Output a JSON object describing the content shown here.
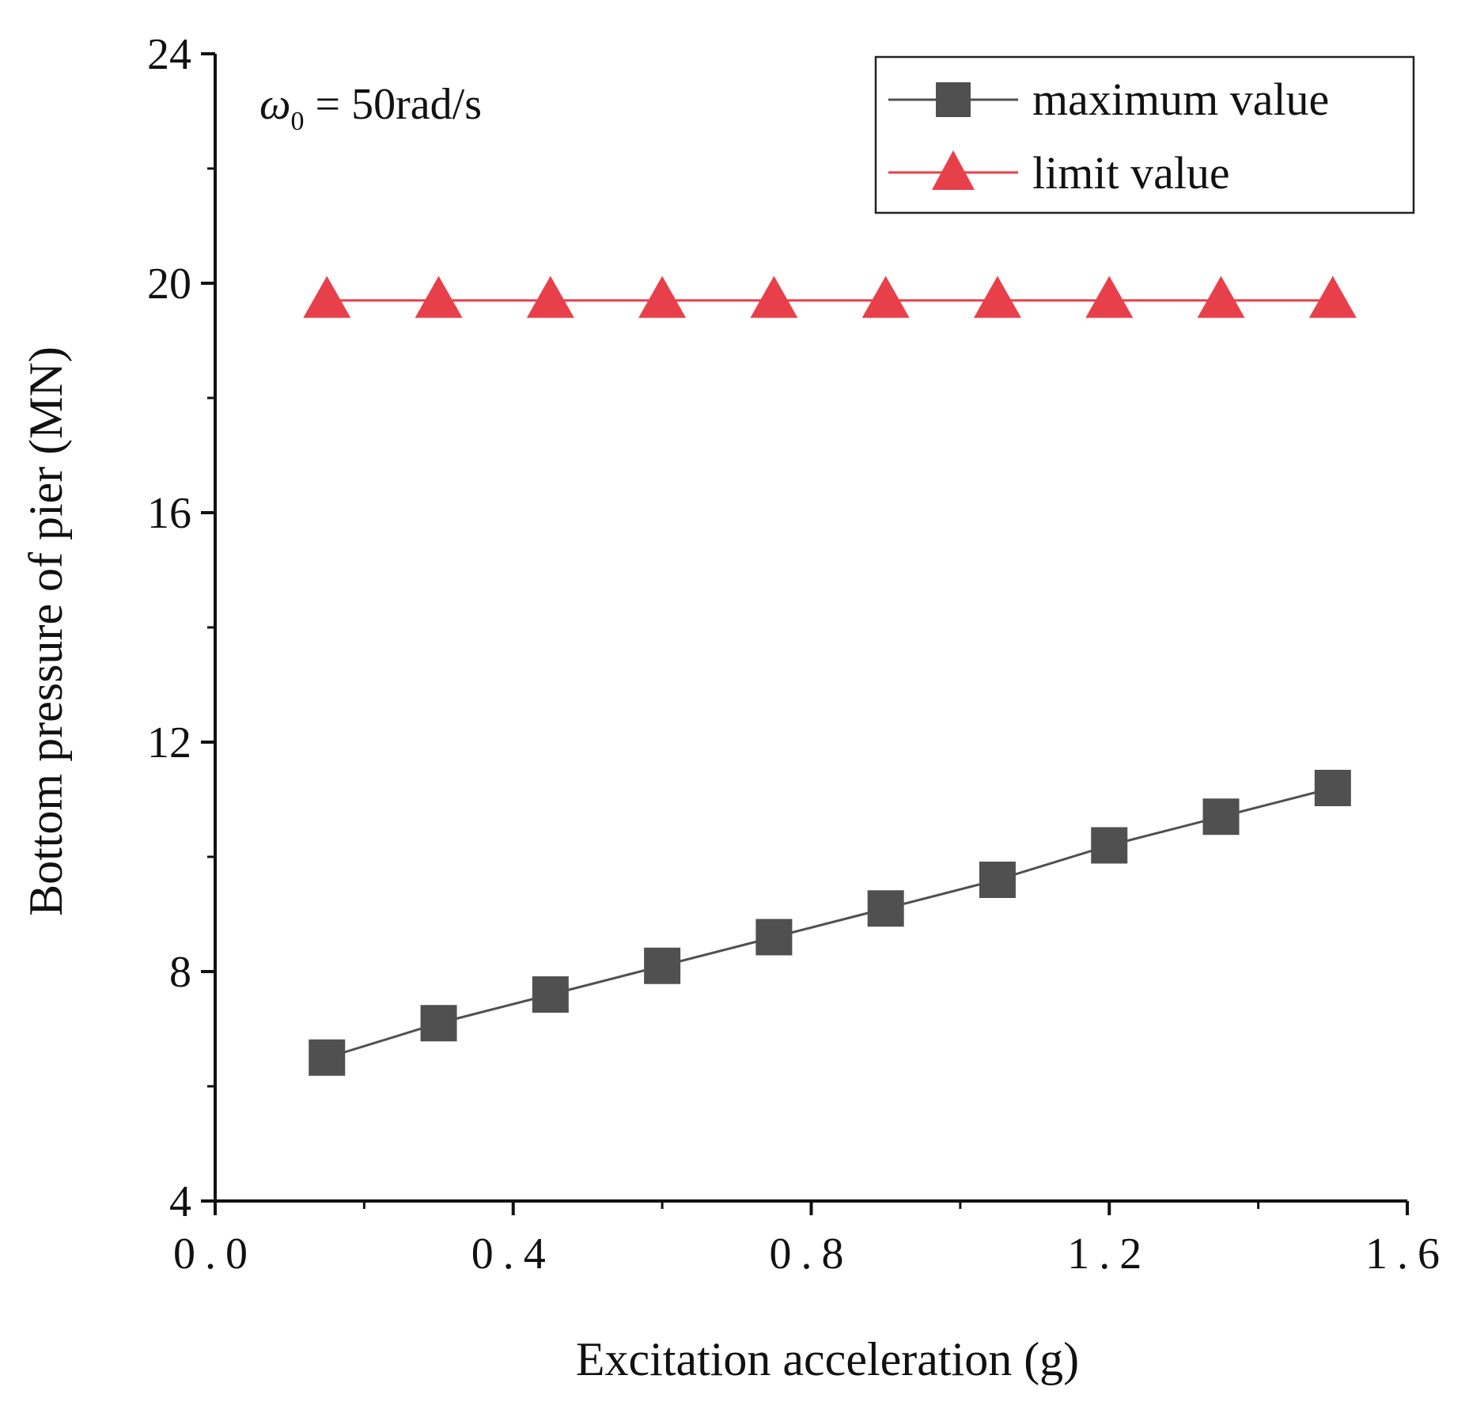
{
  "chart_data": {
    "type": "line",
    "title": "",
    "xlabel": "Excitation acceleration (g)",
    "ylabel": "Bottom pressure of pier (MN)",
    "xlim": [
      0.0,
      1.6
    ],
    "ylim": [
      4,
      24
    ],
    "xticks": [
      0.0,
      0.4,
      0.8,
      1.2,
      1.6
    ],
    "xtick_labels": [
      "0.0",
      "0.4",
      "0.8",
      "1.2",
      "1.6"
    ],
    "yticks": [
      4,
      8,
      12,
      16,
      20,
      24
    ],
    "ytick_labels": [
      "4",
      "8",
      "12",
      "16",
      "20",
      "24"
    ],
    "grid": false,
    "legend_position": "top-right",
    "annotation": {
      "symbol": "ω",
      "subscript": "0",
      "text": " = 50rad/s"
    },
    "x": [
      0.15,
      0.3,
      0.45,
      0.6,
      0.75,
      0.9,
      1.05,
      1.2,
      1.35,
      1.5
    ],
    "series": [
      {
        "name": "maximum value",
        "marker": "square",
        "color": "#505050",
        "values": [
          6.5,
          7.1,
          7.6,
          8.1,
          8.6,
          9.1,
          9.6,
          10.2,
          10.7,
          11.2
        ]
      },
      {
        "name": "limit value",
        "marker": "triangle",
        "color": "#e8404a",
        "values": [
          19.7,
          19.7,
          19.7,
          19.7,
          19.7,
          19.7,
          19.7,
          19.7,
          19.7,
          19.7
        ]
      }
    ]
  }
}
